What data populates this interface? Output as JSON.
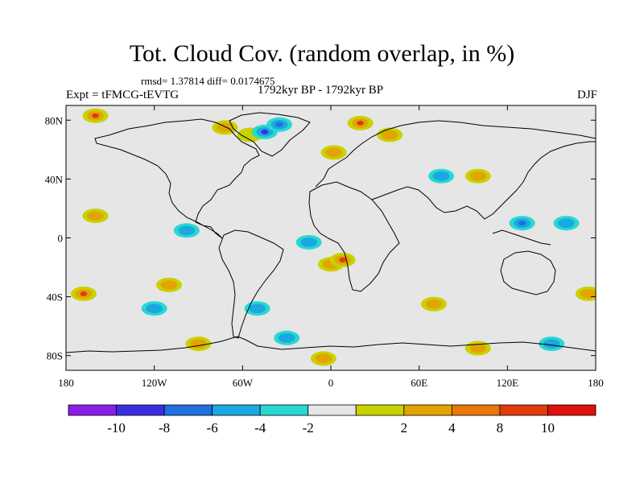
{
  "header": {
    "title": "Tot. Cloud Cov. (random overlap, in %)",
    "stats": "rmsd= 1.37814 diff= 0.0174675",
    "experiment": "Expt = tFMCG-tEVTG",
    "period": "1792kyr BP - 1792kyr BP",
    "season": "DJF"
  },
  "map": {
    "lat_ticks": [
      {
        "label": "80N",
        "lat": 80
      },
      {
        "label": "40N",
        "lat": 40
      },
      {
        "label": "0",
        "lat": 0
      },
      {
        "label": "40S",
        "lat": -40
      },
      {
        "label": "80S",
        "lat": -80
      }
    ],
    "lon_ticks": [
      {
        "label": "180",
        "lon": -180
      },
      {
        "label": "120W",
        "lon": -120
      },
      {
        "label": "60W",
        "lon": -60
      },
      {
        "label": "0",
        "lon": 0
      },
      {
        "label": "60E",
        "lon": 60
      },
      {
        "label": "120E",
        "lon": 120
      },
      {
        "label": "180",
        "lon": 180
      }
    ],
    "background_color": "#e6e6e6",
    "coastline_color": "#000000"
  },
  "colorbar": {
    "colors": [
      "#8a1ee6",
      "#3a2ee0",
      "#1f6fe0",
      "#1aa8e0",
      "#28d8d2",
      "#e6e6e6",
      "#c8d200",
      "#e2a400",
      "#e8780a",
      "#e03c0a",
      "#e0100a"
    ],
    "labels": [
      "-10",
      "-8",
      "-6",
      "-4",
      "-2",
      "2",
      "4",
      "8",
      "10"
    ]
  },
  "anomalies": [
    {
      "lon": -160,
      "lat": 83,
      "level": 4,
      "shape": "blob"
    },
    {
      "lon": -72,
      "lat": 75,
      "level": 2,
      "shape": "blob"
    },
    {
      "lon": -55,
      "lat": 70,
      "level": 1,
      "shape": "blob"
    },
    {
      "lon": -45,
      "lat": 72,
      "level": -4,
      "shape": "blob"
    },
    {
      "lon": -35,
      "lat": 77,
      "level": -3,
      "shape": "blob"
    },
    {
      "lon": 2,
      "lat": 58,
      "level": 2,
      "shape": "blob"
    },
    {
      "lon": 20,
      "lat": 78,
      "level": 4,
      "shape": "blob"
    },
    {
      "lon": 40,
      "lat": 70,
      "level": 2,
      "shape": "blob"
    },
    {
      "lon": 75,
      "lat": 42,
      "level": -2,
      "shape": "blob"
    },
    {
      "lon": 100,
      "lat": 42,
      "level": 2,
      "shape": "blob"
    },
    {
      "lon": 130,
      "lat": 10,
      "level": -3,
      "shape": "blob"
    },
    {
      "lon": 160,
      "lat": 10,
      "level": -2,
      "shape": "blob"
    },
    {
      "lon": -160,
      "lat": 15,
      "level": 2,
      "shape": "blob"
    },
    {
      "lon": -98,
      "lat": 5,
      "level": -2,
      "shape": "blob"
    },
    {
      "lon": -15,
      "lat": -3,
      "level": -2,
      "shape": "blob"
    },
    {
      "lon": 0,
      "lat": -18,
      "level": 2,
      "shape": "blob"
    },
    {
      "lon": 8,
      "lat": -15,
      "level": 4,
      "shape": "blob"
    },
    {
      "lon": -168,
      "lat": -38,
      "level": 4,
      "shape": "blob"
    },
    {
      "lon": -110,
      "lat": -32,
      "level": 2,
      "shape": "blob"
    },
    {
      "lon": -120,
      "lat": -48,
      "level": -2,
      "shape": "blob"
    },
    {
      "lon": -50,
      "lat": -48,
      "level": -2,
      "shape": "blob"
    },
    {
      "lon": -30,
      "lat": -68,
      "level": -2,
      "shape": "blob"
    },
    {
      "lon": 70,
      "lat": -45,
      "level": 2,
      "shape": "blob"
    },
    {
      "lon": 100,
      "lat": -75,
      "level": 2,
      "shape": "blob"
    },
    {
      "lon": 150,
      "lat": -72,
      "level": -2,
      "shape": "blob"
    },
    {
      "lon": 175,
      "lat": -38,
      "level": 2,
      "shape": "blob"
    },
    {
      "lon": -90,
      "lat": -72,
      "level": 2,
      "shape": "blob"
    },
    {
      "lon": -5,
      "lat": -82,
      "level": 2,
      "shape": "blob"
    }
  ]
}
